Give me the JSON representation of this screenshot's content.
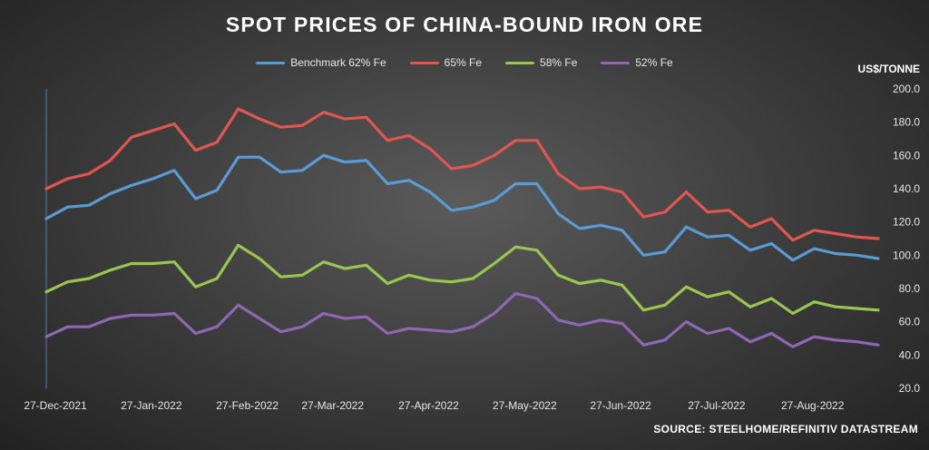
{
  "chart_data": {
    "type": "line",
    "title": "SPOT PRICES OF CHINA-BOUND IRON ORE",
    "ylabel": "US$/TONNE",
    "source": "SOURCE: STEELHOME/REFINITIV DATASTREAM",
    "ylim": [
      20.0,
      200.0
    ],
    "yticks": [
      "200.0",
      "180.0",
      "160.0",
      "140.0",
      "120.0",
      "100.0",
      "80.0",
      "60.0",
      "40.0",
      "20.0"
    ],
    "x_tick_labels": [
      "27-Dec-2021",
      "27-Jan-2022",
      "27-Feb-2022",
      "27-Mar-2022",
      "27-Apr-2022",
      "27-May-2022",
      "27-Jun-2022",
      "27-Jul-2022",
      "27-Aug-2022"
    ],
    "legend_position": "top-center",
    "series": [
      {
        "name": "Benchmark 62% Fe",
        "color": "#5b9bd5",
        "values": [
          122,
          129,
          130,
          137,
          142,
          146,
          151,
          134,
          139,
          159,
          159,
          150,
          151,
          160,
          156,
          157,
          143,
          145,
          138,
          127,
          129,
          133,
          143,
          143,
          125,
          116,
          118,
          115,
          100,
          102,
          117,
          111,
          112,
          103,
          107,
          97,
          104,
          101,
          100,
          98
        ]
      },
      {
        "name": "65% Fe",
        "color": "#e05651",
        "values": [
          140,
          146,
          149,
          157,
          171,
          175,
          179,
          163,
          168,
          188,
          182,
          177,
          178,
          186,
          182,
          183,
          169,
          172,
          164,
          152,
          154,
          160,
          169,
          169,
          149,
          140,
          141,
          138,
          123,
          126,
          138,
          126,
          127,
          117,
          122,
          109,
          115,
          113,
          111,
          110
        ]
      },
      {
        "name": "58% Fe",
        "color": "#9bc54e",
        "values": [
          78,
          84,
          86,
          91,
          95,
          95,
          96,
          81,
          86,
          106,
          98,
          87,
          88,
          96,
          92,
          94,
          83,
          88,
          85,
          84,
          86,
          95,
          105,
          103,
          88,
          83,
          85,
          82,
          67,
          70,
          81,
          75,
          78,
          69,
          74,
          65,
          72,
          69,
          68,
          67
        ]
      },
      {
        "name": "52% Fe",
        "color": "#8e67b5",
        "values": [
          51,
          57,
          57,
          62,
          64,
          64,
          65,
          53,
          57,
          70,
          62,
          54,
          57,
          65,
          62,
          63,
          53,
          56,
          55,
          54,
          57,
          65,
          77,
          74,
          61,
          58,
          61,
          59,
          46,
          49,
          60,
          53,
          56,
          48,
          53,
          45,
          51,
          49,
          48,
          46
        ]
      }
    ]
  }
}
